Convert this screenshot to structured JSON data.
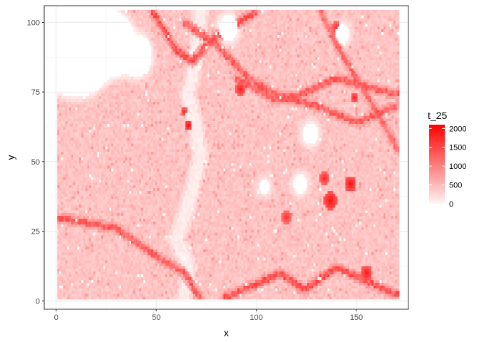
{
  "chart_data": {
    "type": "heatmap",
    "xlabel": "x",
    "ylabel": "y",
    "xlim": [
      -6,
      176
    ],
    "ylim": [
      -3,
      106
    ],
    "x_ticks": [
      0,
      50,
      100,
      150
    ],
    "y_ticks": [
      0,
      25,
      50,
      75,
      100
    ],
    "grid": true,
    "raster_extent": {
      "x": [
        1,
        171
      ],
      "y": [
        1,
        104
      ]
    },
    "legend": {
      "title": "t_25",
      "position": "right",
      "breaks": [
        0,
        500,
        1000,
        1500,
        2000
      ],
      "limits": [
        0,
        2100
      ],
      "low_color": "#fff5f3",
      "high_color": "#ff0000"
    },
    "colors": {
      "panel_border": "#333333",
      "grid_major": "#ebebeb",
      "grid_minor": "#f5f5f5"
    },
    "features": {
      "base_level": 420,
      "river_path": [
        [
          72,
          104
        ],
        [
          70,
          88
        ],
        [
          66,
          74
        ],
        [
          70,
          62
        ],
        [
          72,
          52
        ],
        [
          68,
          40
        ],
        [
          64,
          30
        ],
        [
          60,
          22
        ],
        [
          66,
          12
        ],
        [
          64,
          1
        ]
      ],
      "road_paths": [
        {
          "level": 1300,
          "points": [
            [
              0,
              30
            ],
            [
              30,
              26
            ],
            [
              50,
              16
            ],
            [
              64,
              10
            ],
            [
              72,
              1
            ]
          ]
        },
        {
          "level": 1400,
          "points": [
            [
              48,
              104
            ],
            [
              60,
              90
            ],
            [
              68,
              86
            ],
            [
              78,
              94
            ],
            [
              100,
              104
            ]
          ]
        },
        {
          "level": 1300,
          "points": [
            [
              64,
              100
            ],
            [
              80,
              92
            ],
            [
              96,
              80
            ],
            [
              110,
              74
            ],
            [
              130,
              70
            ],
            [
              150,
              64
            ],
            [
              170,
              70
            ]
          ]
        },
        {
          "level": 1300,
          "points": [
            [
              90,
              80
            ],
            [
              110,
              72
            ],
            [
              122,
              74
            ],
            [
              140,
              80
            ],
            [
              160,
              76
            ],
            [
              171,
              74
            ]
          ]
        },
        {
          "level": 1400,
          "points": [
            [
              84,
              1
            ],
            [
              100,
              6
            ],
            [
              112,
              10
            ],
            [
              124,
              4
            ],
            [
              140,
              12
            ],
            [
              152,
              8
            ],
            [
              171,
              2
            ]
          ]
        },
        {
          "level": 1200,
          "points": [
            [
              132,
              104
            ],
            [
              140,
              92
            ],
            [
              150,
              80
            ],
            [
              160,
              68
            ],
            [
              171,
              54
            ]
          ]
        }
      ],
      "hotspots": [
        {
          "x": 137,
          "y": 36,
          "r": 3.5,
          "v": 2000
        },
        {
          "x": 147,
          "y": 42,
          "r": 3,
          "v": 2000
        },
        {
          "x": 92,
          "y": 76,
          "r": 2.5,
          "v": 1900
        },
        {
          "x": 66,
          "y": 63,
          "r": 2,
          "v": 2000
        },
        {
          "x": 155,
          "y": 10,
          "r": 3,
          "v": 1900
        },
        {
          "x": 134,
          "y": 44,
          "r": 2.5,
          "v": 1800
        },
        {
          "x": 149,
          "y": 73,
          "r": 2,
          "v": 1800
        },
        {
          "x": 64,
          "y": 68,
          "r": 2,
          "v": 1700
        },
        {
          "x": 115,
          "y": 30,
          "r": 2.5,
          "v": 1700
        },
        {
          "x": 140,
          "y": 98,
          "r": 2.5,
          "v": 1700
        }
      ],
      "white_patches": [
        {
          "x": 10,
          "y": 95,
          "r": 22
        },
        {
          "x": 28,
          "y": 92,
          "r": 12
        },
        {
          "x": 40,
          "y": 88,
          "r": 8
        },
        {
          "x": 86,
          "y": 98,
          "r": 5
        },
        {
          "x": 143,
          "y": 96,
          "r": 3.5
        },
        {
          "x": 122,
          "y": 42,
          "r": 3.5
        },
        {
          "x": 127,
          "y": 60,
          "r": 4
        },
        {
          "x": 104,
          "y": 41,
          "r": 2.5
        }
      ]
    }
  }
}
